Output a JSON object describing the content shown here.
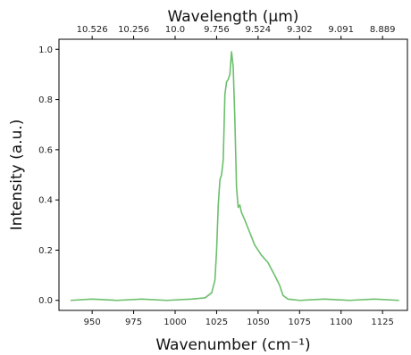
{
  "chart_data": {
    "type": "line",
    "title": "",
    "xlabel": "Wavenumber (cm⁻¹)",
    "ylabel": "Intensity (a.u.)",
    "top_xlabel": "Wavelength (μm)",
    "xlim": [
      930,
      1140
    ],
    "ylim": [
      -0.04,
      1.04
    ],
    "grid": false,
    "xticks": [
      950,
      975,
      1000,
      1025,
      1050,
      1075,
      1100,
      1125
    ],
    "xtick_labels": [
      "950",
      "975",
      "1000",
      "1025",
      "1050",
      "1075",
      "1100",
      "1125"
    ],
    "yticks": [
      0.0,
      0.2,
      0.4,
      0.6,
      0.8,
      1.0
    ],
    "ytick_labels": [
      "0.0",
      "0.2",
      "0.4",
      "0.6",
      "0.8",
      "1.0"
    ],
    "top_ticks": [
      950,
      975,
      1000,
      1025,
      1050,
      1075,
      1100,
      1125
    ],
    "top_tick_labels": [
      "10.526",
      "10.256",
      "10.0",
      "9.756",
      "9.524",
      "9.302",
      "9.091",
      "8.889"
    ],
    "series": [
      {
        "color": "#6cbf6c",
        "x": [
          937,
          950,
          965,
          980,
          995,
          1010,
          1018,
          1022,
          1024,
          1025,
          1026,
          1027,
          1028,
          1029,
          1030,
          1031,
          1032,
          1033,
          1034,
          1035,
          1036,
          1037,
          1038,
          1039,
          1040,
          1042,
          1045,
          1048,
          1052,
          1056,
          1060,
          1063,
          1065,
          1068,
          1075,
          1090,
          1105,
          1120,
          1135
        ],
        "y": [
          0.0,
          0.005,
          0.0,
          0.005,
          0.0,
          0.005,
          0.01,
          0.03,
          0.08,
          0.2,
          0.38,
          0.48,
          0.5,
          0.56,
          0.82,
          0.87,
          0.88,
          0.9,
          0.99,
          0.93,
          0.72,
          0.45,
          0.37,
          0.38,
          0.35,
          0.32,
          0.27,
          0.22,
          0.18,
          0.15,
          0.1,
          0.06,
          0.02,
          0.005,
          0.0,
          0.005,
          0.0,
          0.005,
          0.0
        ]
      }
    ]
  }
}
